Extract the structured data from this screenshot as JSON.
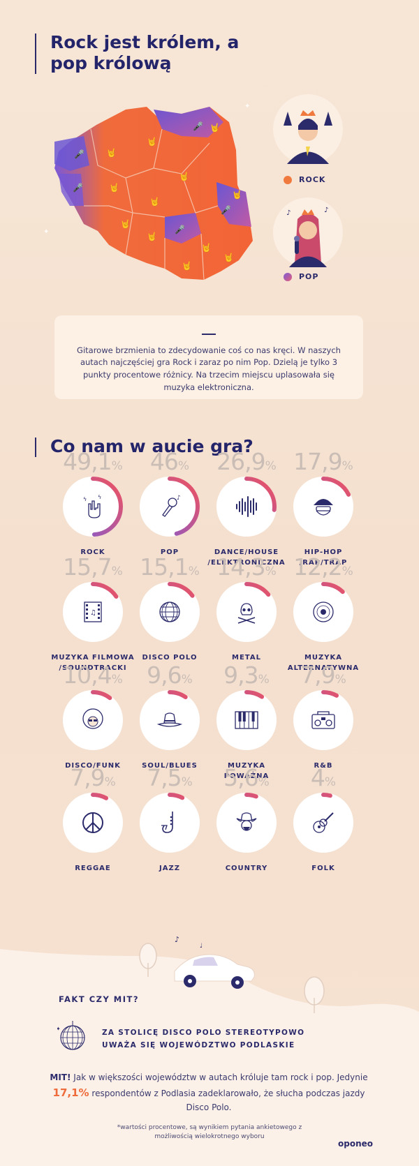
{
  "title": "Rock jest królem, a pop królową",
  "legend": [
    {
      "label": "ROCK",
      "color": "#f07a3e"
    },
    {
      "label": "POP",
      "color": "#7d5cd6"
    }
  ],
  "intro_text": "Gitarowe brzmienia to zdecydowanie coś co nas kręci. W naszych autach najczęściej gra Rock i zaraz po nim Pop. Dzielą je tylko 3 punkty procentowe różnicy. Na trzecim miejscu uplasowała się muzyka elektroniczna.",
  "section_title": "Co nam w aucie gra?",
  "genres": [
    {
      "value": "49,1",
      "fraction": 0.491,
      "label": "ROCK",
      "icon": "rock-hand-icon"
    },
    {
      "value": "46",
      "fraction": 0.46,
      "label": "POP",
      "icon": "microphone-icon"
    },
    {
      "value": "26,9",
      "fraction": 0.269,
      "label": "DANCE/HOUSE /ELEKTRONICZNA",
      "icon": "soundwave-icon"
    },
    {
      "value": "17,9",
      "fraction": 0.179,
      "label": "HIP-HOP /RAP/TRAP",
      "icon": "rapper-icon"
    },
    {
      "value": "15,7",
      "fraction": 0.157,
      "label": "MUZYKA FILMOWA /SOUNDTRACKI",
      "icon": "film-icon"
    },
    {
      "value": "15,1",
      "fraction": 0.151,
      "label": "DISCO POLO",
      "icon": "disco-ball-icon"
    },
    {
      "value": "14,3",
      "fraction": 0.143,
      "label": "METAL",
      "icon": "skull-icon"
    },
    {
      "value": "12,2",
      "fraction": 0.122,
      "label": "MUZYKA ALTERNATYWNA",
      "icon": "vinyl-icon"
    },
    {
      "value": "10,4",
      "fraction": 0.104,
      "label": "DISCO/FUNK",
      "icon": "afro-icon"
    },
    {
      "value": "9,6",
      "fraction": 0.096,
      "label": "SOUL/BLUES",
      "icon": "hat-icon"
    },
    {
      "value": "9,3",
      "fraction": 0.093,
      "label": "MUZYKA POWAŻNA",
      "icon": "piano-icon"
    },
    {
      "value": "7,9",
      "fraction": 0.079,
      "label": "R&B",
      "icon": "boombox-icon"
    },
    {
      "value": "7,9",
      "fraction": 0.079,
      "label": "REGGAE",
      "icon": "peace-icon"
    },
    {
      "value": "7,5",
      "fraction": 0.075,
      "label": "JAZZ",
      "icon": "saxophone-icon"
    },
    {
      "value": "5,6",
      "fraction": 0.056,
      "label": "COUNTRY",
      "icon": "cowboy-icon"
    },
    {
      "value": "4",
      "fraction": 0.04,
      "label": "FOLK",
      "icon": "guitar-icon"
    }
  ],
  "percent_sign": "%",
  "fact": {
    "title": "FAKT CZY MIT?",
    "statement": "ZA STOLICĘ DISCO POLO STEREOTYPOWO UWAŻA SIĘ WOJEWÓDZTWO PODLASKIE",
    "verdict": "MIT!",
    "text_before": "Jak w większości województw w autach króluje tam rock i pop. Jedynie",
    "highlight": "17,1%",
    "text_after": "respondentów z Podlasia zadeklarowało, że słucha podczas jazdy Disco Polo."
  },
  "footnote": "*wartości procentowe, są wynikiem pytania ankietowego z możliwością wielokrotnego wyboru",
  "logo": "oponeo"
}
